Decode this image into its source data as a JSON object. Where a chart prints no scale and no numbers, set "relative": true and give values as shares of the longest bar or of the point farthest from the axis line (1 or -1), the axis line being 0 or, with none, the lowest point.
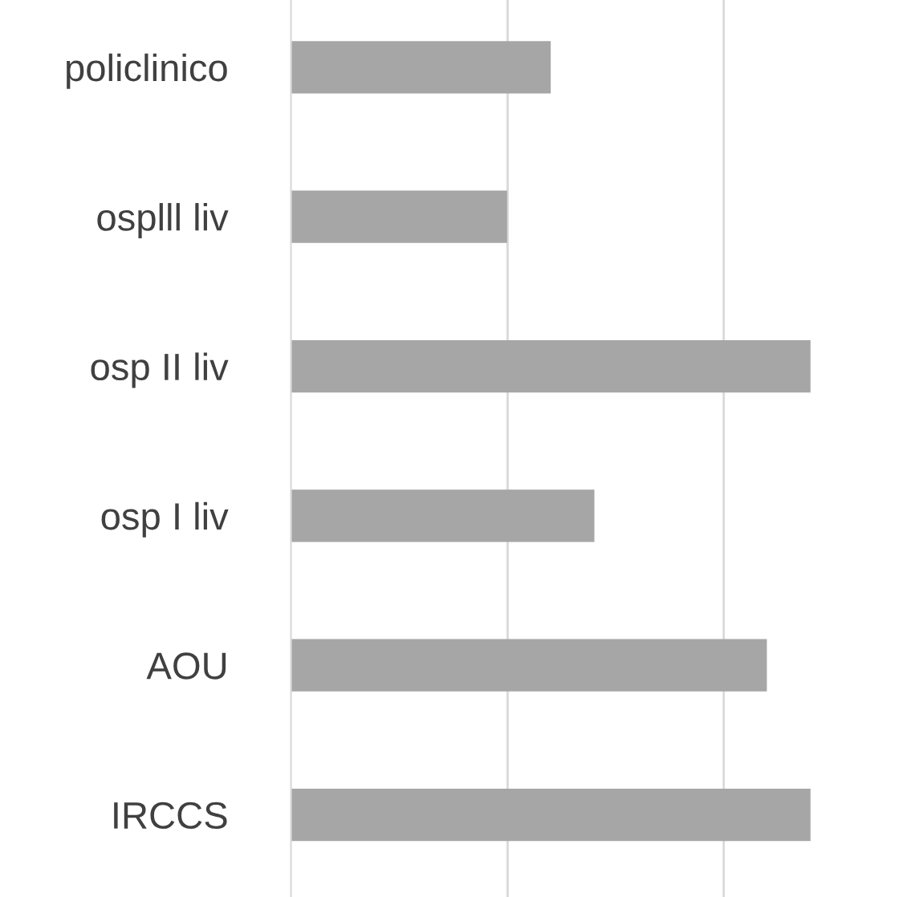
{
  "chart_data": {
    "type": "bar",
    "orientation": "horizontal",
    "relative": true,
    "categories": [
      "policlinico",
      "osplll liv",
      "osp II liv",
      "osp I liv",
      "AOU",
      "IRCCS"
    ],
    "values": [
      0.5,
      0.416,
      1,
      0.584,
      0.916,
      1
    ],
    "color": "#a6a6a6",
    "ref_lines": [
      {
        "axis": "x",
        "value": 0.417,
        "color": "#d9d9d9"
      },
      {
        "axis": "x",
        "value": 0.833,
        "color": "#d9d9d9"
      }
    ],
    "legend": false
  }
}
